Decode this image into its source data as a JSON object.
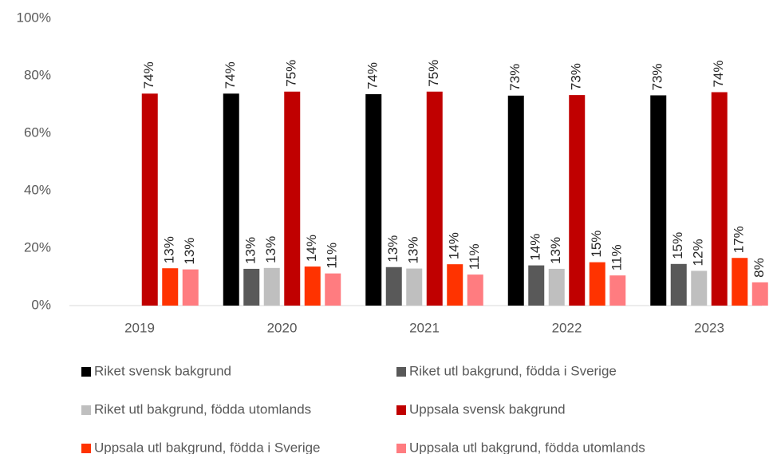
{
  "chart_data": {
    "type": "bar",
    "categories": [
      "2019",
      "2020",
      "2021",
      "2022",
      "2023"
    ],
    "series": [
      {
        "name": "Riket svensk bakgrund",
        "color": "#000000",
        "values": [
          null,
          73.8,
          73.6,
          73.1,
          73.2
        ],
        "value_labels": [
          null,
          "74%",
          "74%",
          "73%",
          "73%"
        ]
      },
      {
        "name": "Riket utl bakgrund, födda i Sverige",
        "color": "#595959",
        "values": [
          null,
          12.8,
          13.4,
          14.0,
          14.5
        ],
        "value_labels": [
          null,
          "13%",
          "13%",
          "14%",
          "15%"
        ]
      },
      {
        "name": "Riket utl bakgrund, födda utomlands",
        "color": "#bfbfbf",
        "values": [
          null,
          13.1,
          12.9,
          12.8,
          12.1
        ],
        "value_labels": [
          null,
          "13%",
          "13%",
          "13%",
          "12%"
        ]
      },
      {
        "name": "Uppsala svensk bakgrund",
        "color": "#c00000",
        "values": [
          73.8,
          74.5,
          74.5,
          73.3,
          74.3
        ],
        "value_labels": [
          "74%",
          "75%",
          "75%",
          "73%",
          "74%"
        ]
      },
      {
        "name": "Uppsala utl bakgrund, födda i Sverige",
        "color": "#ff3300",
        "values": [
          13.0,
          13.6,
          14.4,
          15.1,
          16.6
        ],
        "value_labels": [
          "13%",
          "14%",
          "14%",
          "15%",
          "17%"
        ]
      },
      {
        "name": "Uppsala utl bakgrund, födda utomlands",
        "color": "#ff7c80",
        "values": [
          12.6,
          11.2,
          10.8,
          10.5,
          8.1
        ],
        "value_labels": [
          "13%",
          "11%",
          "11%",
          "11%",
          "8%"
        ]
      }
    ],
    "ylim": [
      0,
      100
    ],
    "yticks": [
      {
        "value": 0,
        "label": "0%"
      },
      {
        "value": 20,
        "label": "20%"
      },
      {
        "value": 40,
        "label": "40%"
      },
      {
        "value": 60,
        "label": "60%"
      },
      {
        "value": 80,
        "label": "80%"
      },
      {
        "value": 100,
        "label": "100%"
      }
    ],
    "grid": false
  }
}
